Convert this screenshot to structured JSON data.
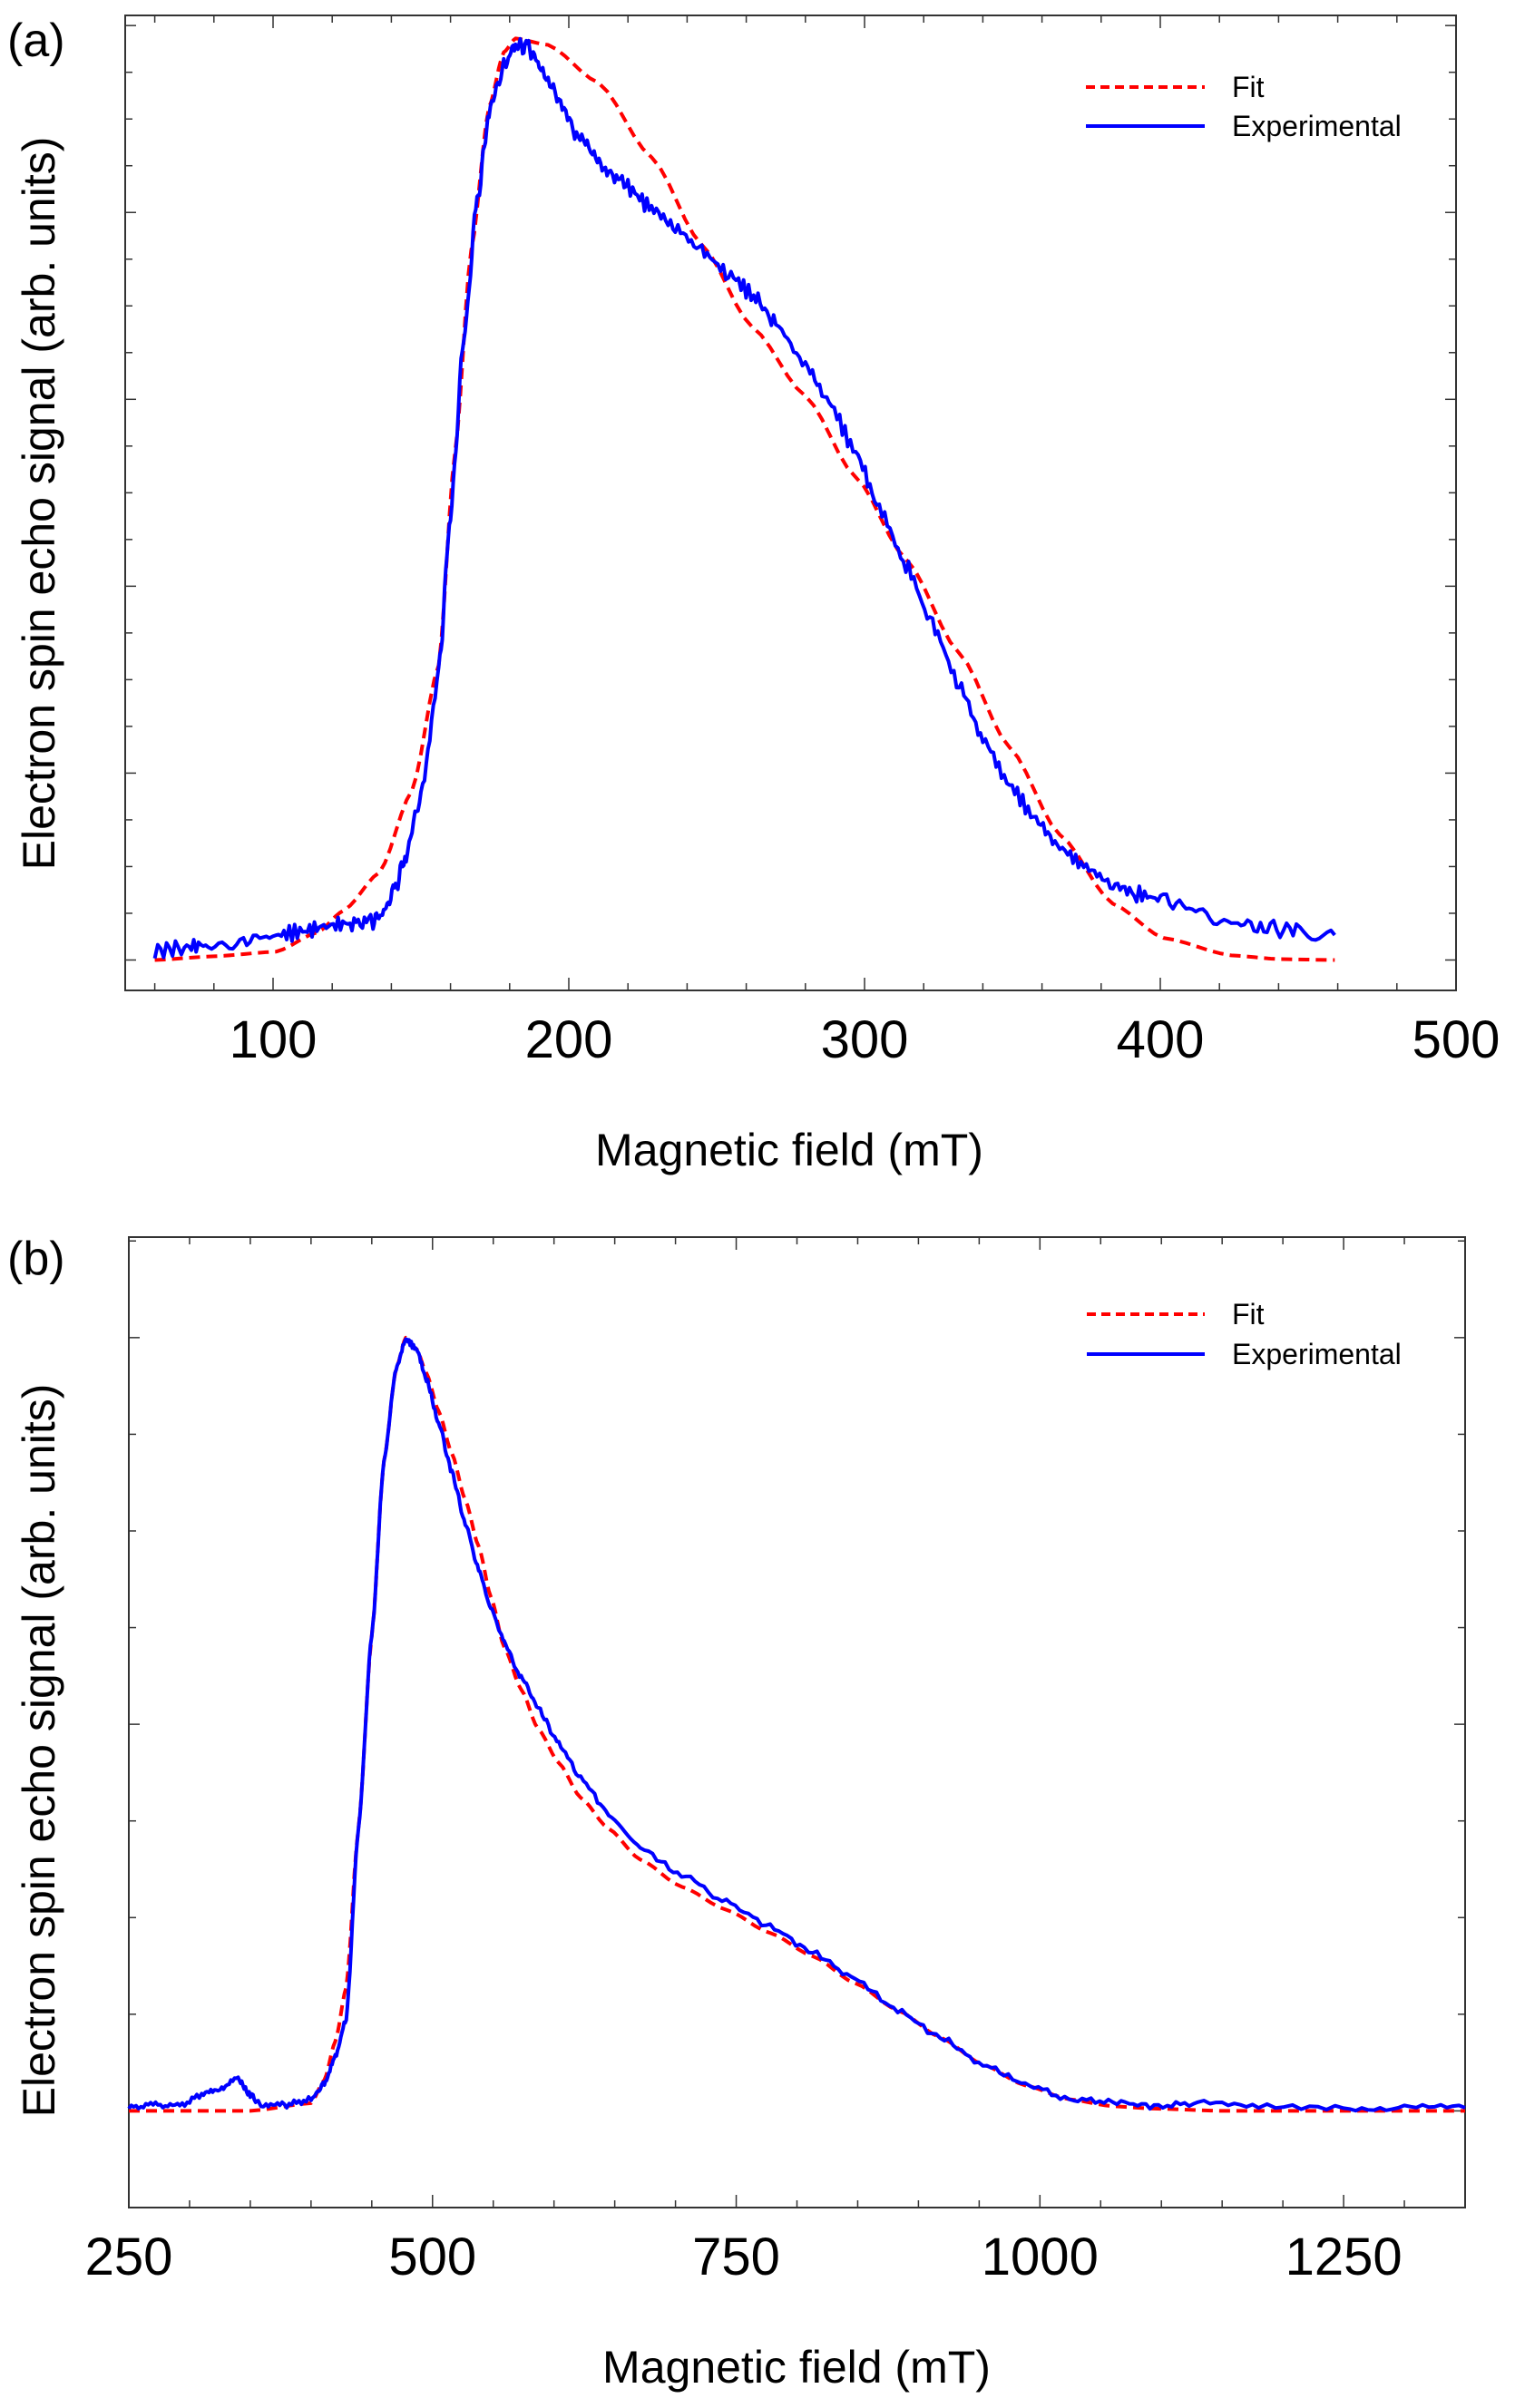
{
  "colors": {
    "fit": "#ff0000",
    "experimental": "#0000ff",
    "axis": "#333333"
  },
  "chart_data": [
    {
      "panel_label": "(a)",
      "type": "line",
      "title": "",
      "xlabel": "Magnetic field (mT)",
      "ylabel": "Electron spin echo signal (arb. units)",
      "xlim": [
        50,
        500
      ],
      "ylim": [
        -0.033,
        1.025
      ],
      "xticks": [
        100,
        200,
        300,
        400,
        500
      ],
      "xtick_labels": [
        "100",
        "200",
        "300",
        "400",
        "500"
      ],
      "x_minor_step": 20,
      "y_tick_step": 0.0507,
      "ytick_labels_shown": false,
      "grid": false,
      "legend": {
        "placement": "top-right",
        "entries": [
          "Fit",
          "Experimental"
        ]
      },
      "series": [
        {
          "name": "Fit",
          "style": "dashed",
          "x": [
            60,
            80,
            101,
            115,
            124,
            136,
            147,
            156,
            161.5,
            167,
            173,
            178,
            182,
            193,
            210,
            228,
            245,
            262,
            280,
            297,
            314,
            332,
            349,
            366,
            384,
            401,
            424,
            440,
            459
          ],
          "y": [
            0.0,
            0.004,
            0.009,
            0.03,
            0.054,
            0.095,
            0.184,
            0.32,
            0.55,
            0.77,
            0.925,
            0.985,
            1.0,
            0.993,
            0.952,
            0.871,
            0.776,
            0.687,
            0.612,
            0.524,
            0.435,
            0.333,
            0.231,
            0.136,
            0.061,
            0.024,
            0.005,
            0.001,
            0.0
          ]
        },
        {
          "name": "Experimental",
          "style": "solid",
          "x": [
            60,
            70,
            78,
            90,
            101,
            110,
            118,
            126,
            133,
            137,
            141,
            145,
            150,
            156,
            160,
            164.5,
            169,
            173,
            178,
            182,
            186,
            190,
            196,
            202,
            208,
            213.5,
            220,
            228,
            236,
            245,
            254,
            262.5,
            270,
            280,
            288,
            297,
            305,
            314,
            323,
            332,
            340,
            349,
            358,
            366,
            375,
            384,
            392,
            401,
            412,
            424,
            435,
            446,
            459
          ],
          "y": [
            0.01,
            0.014,
            0.017,
            0.022,
            0.027,
            0.031,
            0.037,
            0.04,
            0.041,
            0.05,
            0.075,
            0.115,
            0.177,
            0.313,
            0.483,
            0.673,
            0.823,
            0.918,
            0.97,
            0.993,
            0.99,
            0.973,
            0.94,
            0.898,
            0.875,
            0.857,
            0.838,
            0.816,
            0.795,
            0.769,
            0.745,
            0.721,
            0.69,
            0.646,
            0.605,
            0.551,
            0.49,
            0.429,
            0.363,
            0.299,
            0.24,
            0.19,
            0.152,
            0.122,
            0.1,
            0.082,
            0.072,
            0.065,
            0.055,
            0.041,
            0.036,
            0.031,
            0.027
          ]
        }
      ]
    },
    {
      "panel_label": "(b)",
      "type": "line",
      "title": "",
      "xlabel": "Magnetic field (mT)",
      "ylabel": "Electron spin echo signal (arb. units)",
      "xlim": [
        250,
        1350
      ],
      "ylim": [
        -0.125,
        1.13
      ],
      "xticks": [
        250,
        500,
        750,
        1000,
        1250
      ],
      "xtick_labels": [
        "250",
        "500",
        "750",
        "1000",
        "1250"
      ],
      "x_minor_step": 50,
      "y_tick_step": 0.125,
      "ytick_labels_shown": false,
      "grid": false,
      "legend": {
        "placement": "top-right",
        "entries": [
          "Fit",
          "Experimental"
        ]
      },
      "series": [
        {
          "name": "Fit",
          "style": "dashed",
          "x": [
            250,
            300,
            350,
            400,
            411,
            420,
            429,
            439,
            450,
            460,
            470,
            478,
            487,
            495,
            505,
            516,
            527,
            538,
            548,
            559,
            573,
            587,
            604,
            622,
            645,
            671,
            705,
            742,
            778,
            813,
            848,
            883,
            918,
            953,
            988,
            1024,
            1060,
            1094,
            1150,
            1250,
            1350
          ],
          "y": [
            0.0,
            0.0,
            0.0,
            0.01,
            0.04,
            0.09,
            0.16,
            0.365,
            0.615,
            0.84,
            0.96,
            1.0,
            0.985,
            0.954,
            0.905,
            0.85,
            0.79,
            0.73,
            0.665,
            0.6,
            0.545,
            0.494,
            0.45,
            0.405,
            0.365,
            0.325,
            0.29,
            0.26,
            0.23,
            0.2,
            0.165,
            0.13,
            0.095,
            0.06,
            0.033,
            0.015,
            0.006,
            0.003,
            0.0,
            0.0,
            0.0
          ]
        },
        {
          "name": "Experimental",
          "style": "solid",
          "x": [
            250,
            270,
            290,
            310,
            325,
            340,
            350,
            361,
            380,
            400,
            411,
            420,
            429,
            439,
            450,
            460,
            470,
            478,
            487,
            495,
            505,
            516,
            527,
            538,
            548,
            559,
            573,
            587,
            604,
            622,
            645,
            671,
            705,
            742,
            778,
            813,
            848,
            883,
            918,
            953,
            988,
            1024,
            1060,
            1094,
            1130,
            1180,
            1250,
            1300,
            1350
          ],
          "y": [
            0.004,
            0.008,
            0.006,
            0.02,
            0.03,
            0.041,
            0.02,
            0.005,
            0.008,
            0.015,
            0.035,
            0.07,
            0.12,
            0.365,
            0.615,
            0.84,
            0.96,
            0.998,
            0.985,
            0.946,
            0.89,
            0.825,
            0.76,
            0.7,
            0.65,
            0.607,
            0.56,
            0.52,
            0.475,
            0.43,
            0.385,
            0.34,
            0.305,
            0.27,
            0.238,
            0.205,
            0.17,
            0.13,
            0.095,
            0.06,
            0.035,
            0.015,
            0.012,
            0.006,
            0.01,
            0.006,
            0.004,
            0.004,
            0.004
          ]
        }
      ]
    }
  ]
}
